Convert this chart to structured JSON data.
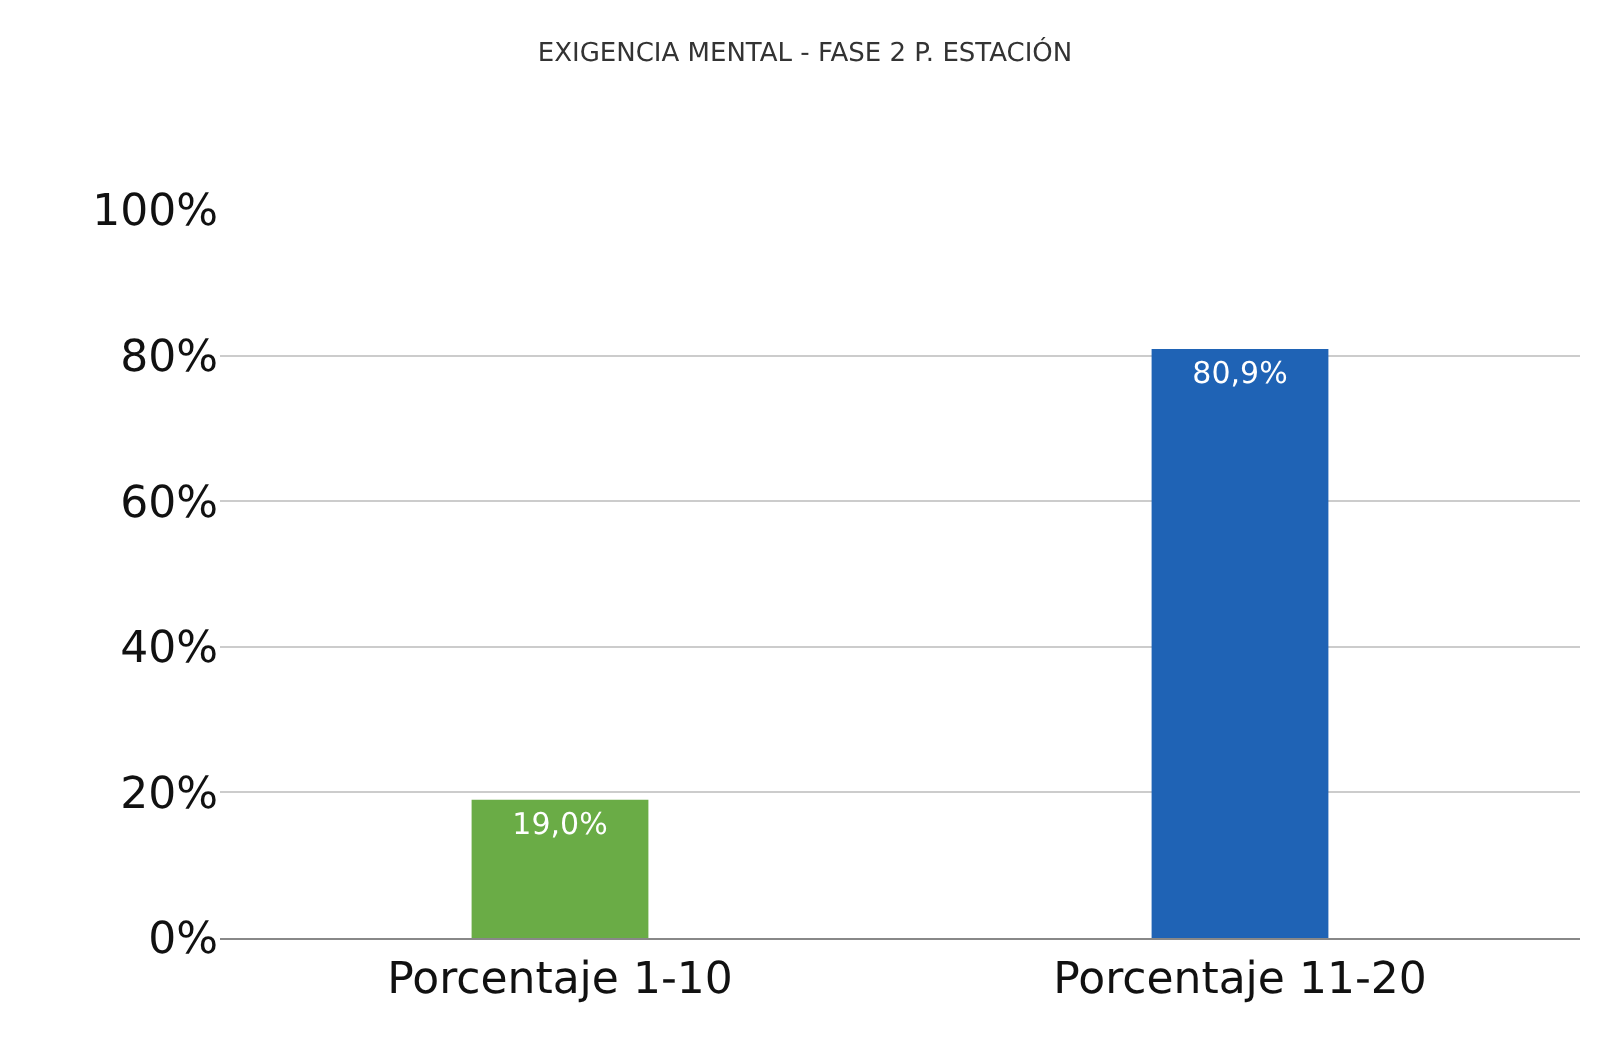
{
  "chart_data": {
    "type": "bar",
    "title": "EXIGENCIA MENTAL - FASE 2 P. ESTACIÓN",
    "categories": [
      "Porcentaje 1-10",
      "Porcentaje 11-20"
    ],
    "values": [
      19.0,
      80.9
    ],
    "colors": [
      "#6aac46",
      "#1f63b5"
    ],
    "value_labels": [
      "19,0%",
      "80,9%"
    ],
    "ylim": [
      0,
      100
    ],
    "yticks": [
      {
        "value": 0,
        "label": "0%"
      },
      {
        "value": 20,
        "label": "20%"
      },
      {
        "value": 40,
        "label": "40%"
      },
      {
        "value": 60,
        "label": "60%"
      },
      {
        "value": 80,
        "label": "80%"
      },
      {
        "value": 100,
        "label": "100%"
      }
    ],
    "grid": "y",
    "legend": false
  }
}
